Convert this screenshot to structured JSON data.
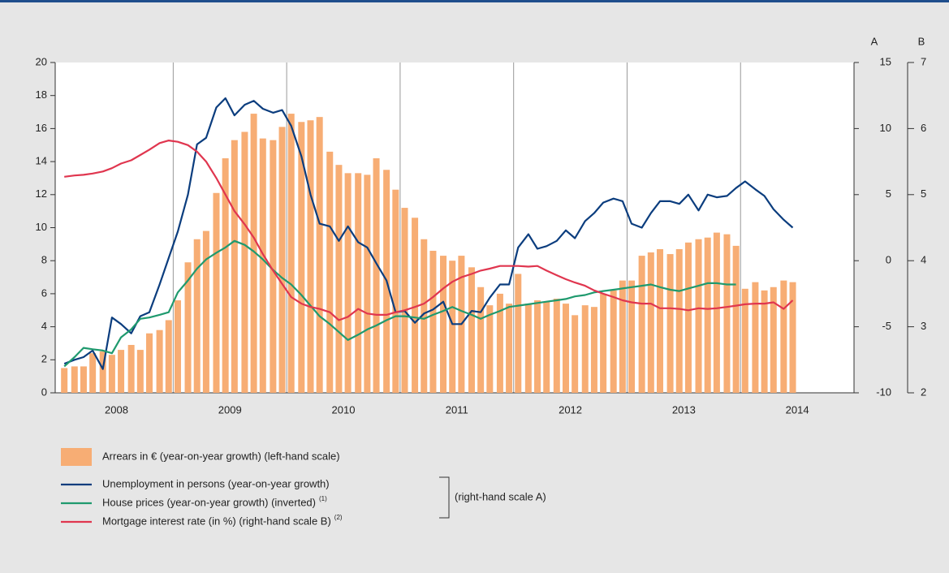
{
  "chart_data": {
    "type": "bar-line",
    "x": [
      2008.04,
      2008.13,
      2008.21,
      2008.29,
      2008.38,
      2008.46,
      2008.54,
      2008.63,
      2008.71,
      2008.79,
      2008.88,
      2008.96,
      2009.04,
      2009.13,
      2009.21,
      2009.29,
      2009.38,
      2009.46,
      2009.54,
      2009.63,
      2009.71,
      2009.79,
      2009.88,
      2009.96,
      2010.04,
      2010.13,
      2010.21,
      2010.29,
      2010.38,
      2010.46,
      2010.54,
      2010.63,
      2010.71,
      2010.79,
      2010.88,
      2010.96,
      2011.04,
      2011.13,
      2011.21,
      2011.29,
      2011.38,
      2011.46,
      2011.54,
      2011.63,
      2011.71,
      2011.79,
      2011.88,
      2011.96,
      2012.04,
      2012.13,
      2012.21,
      2012.29,
      2012.38,
      2012.46,
      2012.54,
      2012.63,
      2012.71,
      2012.79,
      2012.88,
      2012.96,
      2013.04,
      2013.13,
      2013.21,
      2013.29,
      2013.38,
      2013.46,
      2013.54,
      2013.63,
      2013.71,
      2013.79,
      2013.88,
      2013.96,
      2014.04,
      2014.13,
      2014.21,
      2014.29,
      2014.38,
      2014.46
    ],
    "xlim": [
      2007.96,
      2015.0
    ],
    "xticks": [
      {
        "value": 2008.5,
        "label": "2008"
      },
      {
        "value": 2009.5,
        "label": "2009"
      },
      {
        "value": 2010.5,
        "label": "2010"
      },
      {
        "value": 2011.5,
        "label": "2011"
      },
      {
        "value": 2012.5,
        "label": "2012"
      },
      {
        "value": 2013.5,
        "label": "2013"
      },
      {
        "value": 2014.5,
        "label": "2014"
      }
    ],
    "xgrid": [
      2009,
      2010,
      2011,
      2012,
      2013,
      2014
    ],
    "ylim": [
      0,
      20
    ],
    "yticks": [
      0,
      2,
      4,
      6,
      8,
      10,
      12,
      14,
      16,
      18,
      20
    ],
    "y2label": "A",
    "y2lim": [
      -10,
      15
    ],
    "y2ticks": [
      -10,
      -5,
      0,
      5,
      10,
      15
    ],
    "y3label": "B",
    "y3lim": [
      2,
      7
    ],
    "y3ticks": [
      2,
      3,
      4,
      5,
      6,
      7
    ],
    "bracket_label": "(right-hand scale A)",
    "series": [
      {
        "name": "Arrears in € (year-on-year growth) (left-hand scale)",
        "kind": "bar",
        "axis": "y",
        "color": "#f7ad74",
        "values": [
          1.5,
          1.6,
          1.6,
          2.4,
          2.5,
          2.3,
          2.6,
          2.9,
          2.6,
          3.6,
          3.8,
          4.4,
          5.6,
          7.9,
          9.3,
          9.8,
          12.1,
          14.2,
          15.3,
          15.8,
          16.9,
          15.4,
          15.3,
          16.1,
          16.9,
          16.4,
          16.5,
          16.7,
          14.6,
          13.8,
          13.3,
          13.3,
          13.2,
          14.2,
          13.5,
          12.3,
          11.2,
          10.6,
          9.3,
          8.6,
          8.3,
          8.0,
          8.3,
          7.6,
          6.4,
          5.3,
          6.0,
          5.4,
          7.2,
          5.4,
          5.6,
          5.5,
          5.7,
          5.4,
          4.7,
          5.3,
          5.2,
          6.0,
          6.2,
          6.8,
          6.8,
          8.3,
          8.5,
          8.7,
          8.4,
          8.7,
          9.1,
          9.3,
          9.4,
          9.7,
          9.6,
          8.9,
          6.3,
          6.7,
          6.2,
          6.4,
          6.8,
          6.7
        ]
      },
      {
        "name": "Unemployment in persons (year-on-year growth)",
        "kind": "line",
        "axis": "y2",
        "color": "#0b3d7e",
        "values": [
          -7.8,
          -7.5,
          -7.3,
          -6.8,
          -8.2,
          -4.3,
          -4.8,
          -5.5,
          -4.2,
          -3.9,
          -1.8,
          0.2,
          2.2,
          5.0,
          8.8,
          9.3,
          11.6,
          12.3,
          11.0,
          11.8,
          12.1,
          11.5,
          11.2,
          11.4,
          10.2,
          7.9,
          5.0,
          2.8,
          2.6,
          1.5,
          2.6,
          1.4,
          1.0,
          -0.2,
          -1.5,
          -3.9,
          -3.8,
          -4.7,
          -4.0,
          -3.7,
          -3.1,
          -4.8,
          -4.8,
          -3.8,
          -3.9,
          -2.8,
          -1.8,
          -1.8,
          1.0,
          2.0,
          0.9,
          1.1,
          1.5,
          2.3,
          1.7,
          3.0,
          3.6,
          4.4,
          4.7,
          4.5,
          2.8,
          2.5,
          3.6,
          4.5,
          4.5,
          4.3,
          5.0,
          3.8,
          5.0,
          4.8,
          4.9,
          5.5,
          6.0,
          5.4,
          4.9,
          3.9,
          3.1,
          2.5
        ]
      },
      {
        "name": "House prices (year-on-year growth) (inverted)",
        "footnote": "(1)",
        "kind": "line",
        "axis": "y2",
        "color": "#1f9a6e",
        "values": [
          -8.0,
          -7.3,
          -6.6,
          -6.7,
          -6.8,
          -7.0,
          -5.8,
          -5.2,
          -4.4,
          -4.3,
          -4.1,
          -3.9,
          -2.4,
          -1.5,
          -0.6,
          0.1,
          0.6,
          1.0,
          1.5,
          1.2,
          0.7,
          0.1,
          -0.7,
          -1.3,
          -1.8,
          -2.6,
          -3.4,
          -4.2,
          -4.8,
          -5.4,
          -6.0,
          -5.6,
          -5.2,
          -4.9,
          -4.5,
          -4.2,
          -4.2,
          -4.3,
          -4.4,
          -4.1,
          -3.8,
          -3.5,
          -3.8,
          -4.1,
          -4.4,
          -4.1,
          -3.8,
          -3.5,
          -3.4,
          -3.3,
          -3.2,
          -3.1,
          -3.0,
          -2.9,
          -2.7,
          -2.6,
          -2.4,
          -2.3,
          -2.2,
          -2.1,
          -2.0,
          -1.9,
          -1.8,
          -2.0,
          -2.2,
          -2.3,
          -2.1,
          -1.9,
          -1.7,
          -1.7,
          -1.8,
          -1.8,
          null,
          null,
          null,
          null,
          null,
          null
        ]
      },
      {
        "name": "Mortgage interest rate (in %) (right-hand scale B)",
        "footnote": "(2)",
        "kind": "line",
        "axis": "y3",
        "color": "#e0364f",
        "values": [
          5.27,
          5.29,
          5.3,
          5.32,
          5.35,
          5.4,
          5.47,
          5.52,
          5.6,
          5.68,
          5.78,
          5.82,
          5.8,
          5.75,
          5.65,
          5.5,
          5.25,
          5.0,
          4.75,
          4.55,
          4.35,
          4.1,
          3.85,
          3.65,
          3.45,
          3.35,
          3.3,
          3.27,
          3.22,
          3.1,
          3.15,
          3.27,
          3.2,
          3.18,
          3.18,
          3.22,
          3.25,
          3.3,
          3.35,
          3.45,
          3.58,
          3.68,
          3.75,
          3.8,
          3.85,
          3.88,
          3.92,
          3.92,
          3.92,
          3.91,
          3.92,
          3.85,
          3.78,
          3.72,
          3.67,
          3.62,
          3.55,
          3.5,
          3.45,
          3.4,
          3.37,
          3.35,
          3.35,
          3.28,
          3.28,
          3.27,
          3.25,
          3.28,
          3.27,
          3.28,
          3.3,
          3.32,
          3.34,
          3.35,
          3.35,
          3.37,
          3.27,
          3.4
        ]
      }
    ]
  }
}
